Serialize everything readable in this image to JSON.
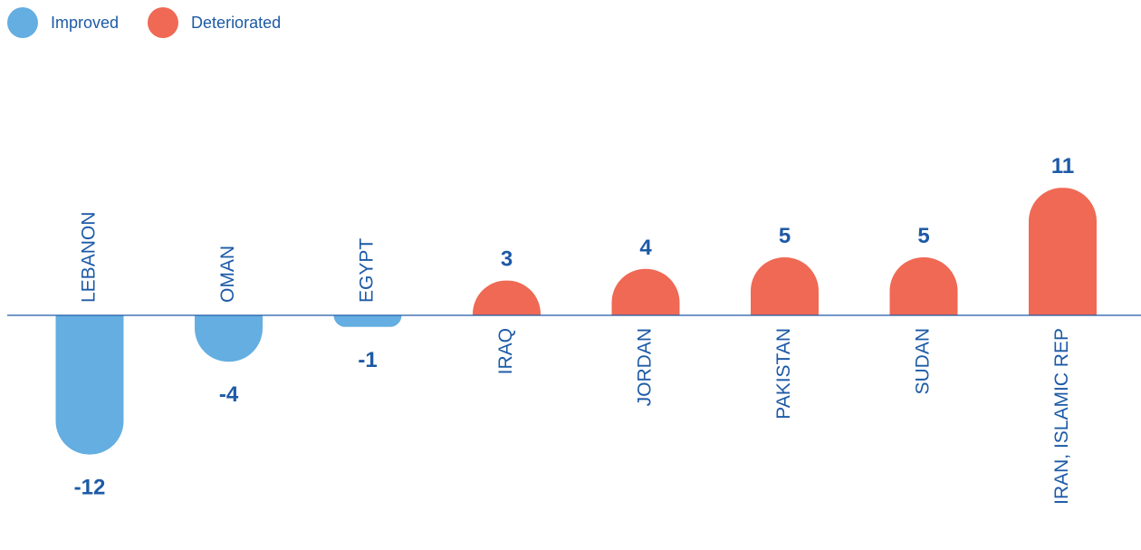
{
  "colors": {
    "improved": "#64aee1",
    "deteriorated": "#ef6954",
    "axis": "#1d5aa6",
    "text": "#1d5aa6"
  },
  "legend": {
    "improved": "Improved",
    "deteriorated": "Deteriorated"
  },
  "chart_data": {
    "type": "bar",
    "categories": [
      "LEBANON",
      "OMAN",
      "EGYPT",
      "IRAQ",
      "JORDAN",
      "PAKISTAN",
      "SUDAN",
      "IRAN, ISLAMIC REP"
    ],
    "values": [
      -12,
      -4,
      -1,
      3,
      4,
      5,
      5,
      11
    ],
    "value_labels": [
      "-12",
      "-4",
      "-1",
      "3",
      "4",
      "5",
      "5",
      "11"
    ],
    "series": [
      {
        "name": "Improved",
        "categories": [
          "LEBANON",
          "OMAN",
          "EGYPT"
        ]
      },
      {
        "name": "Deteriorated",
        "categories": [
          "IRAQ",
          "JORDAN",
          "PAKISTAN",
          "SUDAN",
          "IRAN, ISLAMIC REP"
        ]
      }
    ],
    "title": "",
    "xlabel": "",
    "ylabel": "",
    "ylim": [
      -12,
      11
    ],
    "grid": false,
    "legend_position": "top-left"
  }
}
